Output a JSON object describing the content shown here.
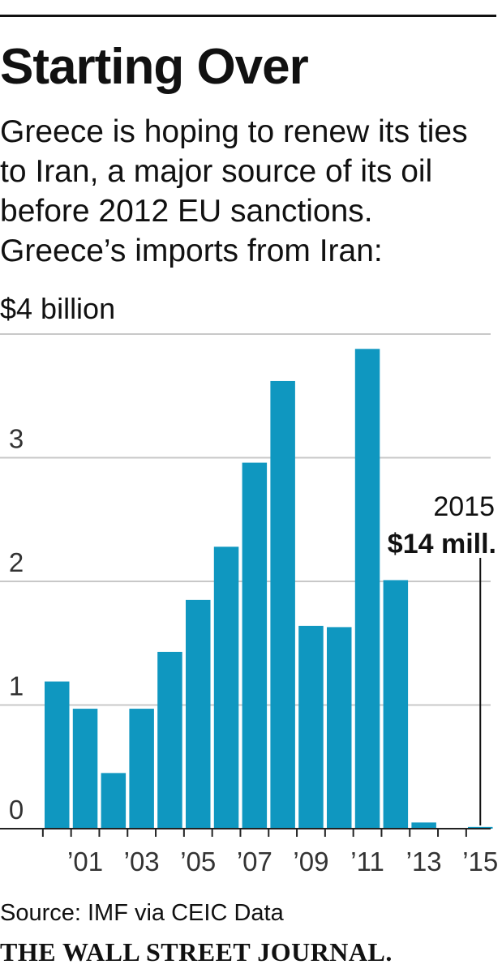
{
  "header": {
    "title": "Starting Over",
    "subtitle": "Greece is hoping to renew its ties to Iran, a major source of its oil before 2012 EU sanctions. Greece’s imports from Iran:"
  },
  "chart_data": {
    "type": "bar",
    "title": "Starting Over",
    "unit_label": "$4 billion",
    "ylim": [
      0,
      4
    ],
    "y_ticks": [
      {
        "value": 0,
        "label": "0"
      },
      {
        "value": 1,
        "label": "1"
      },
      {
        "value": 2,
        "label": "2"
      },
      {
        "value": 3,
        "label": "3"
      },
      {
        "value": 4,
        "label": ""
      }
    ],
    "grid": true,
    "categories": [
      "2000",
      "2001",
      "2002",
      "2003",
      "2004",
      "2005",
      "2006",
      "2007",
      "2008",
      "2009",
      "2010",
      "2011",
      "2012",
      "2013",
      "2014",
      "2015"
    ],
    "values": [
      1.19,
      0.97,
      0.45,
      0.97,
      1.43,
      1.85,
      2.28,
      2.96,
      3.62,
      1.64,
      1.63,
      3.88,
      2.01,
      0.05,
      0.0,
      0.014
    ],
    "x_tick_labels": [
      "",
      "’01",
      "",
      "’03",
      "",
      "’05",
      "",
      "’07",
      "",
      "’09",
      "",
      "’11",
      "",
      "’13",
      "",
      "’15"
    ],
    "bar_color": "#0f97c0",
    "annotation": {
      "category": "2015",
      "year_label": "2015",
      "value_label": "$14 mill."
    }
  },
  "footer": {
    "source": "Source: IMF via CEIC Data",
    "logo": "THE WALL STREET JOURNAL."
  }
}
